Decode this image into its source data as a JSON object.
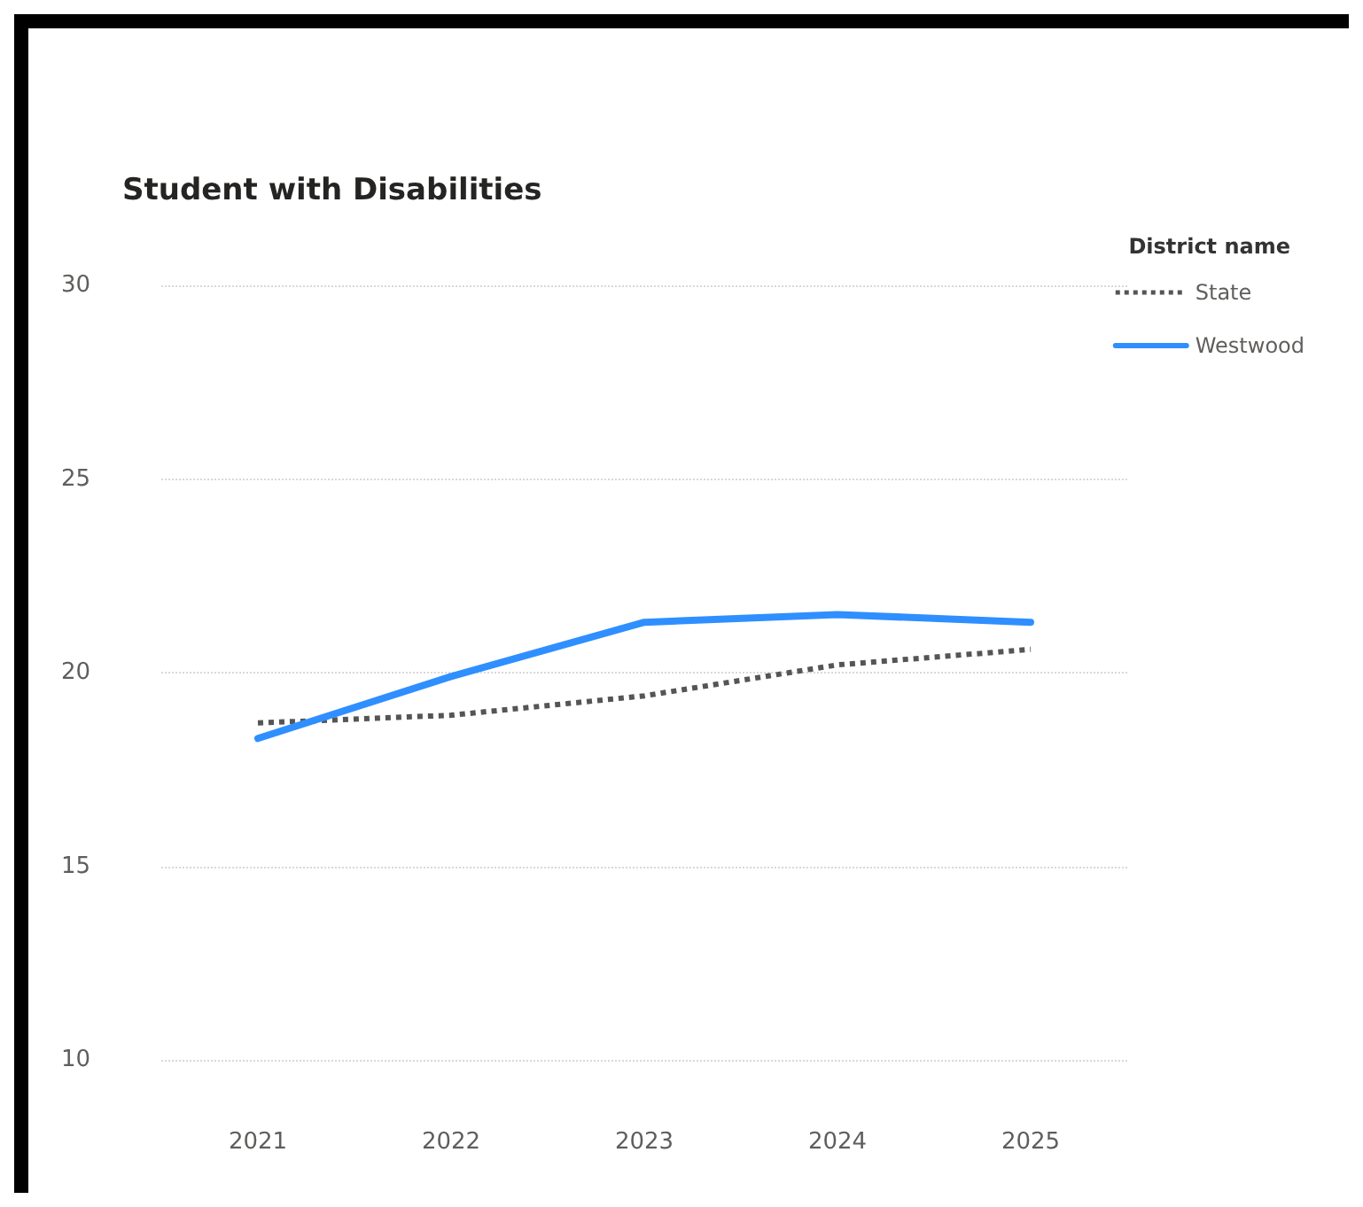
{
  "chart_data": {
    "type": "line",
    "title": "Student with Disabilities",
    "legend_title": "District name",
    "categories": [
      "2021",
      "2022",
      "2023",
      "2024",
      "2025"
    ],
    "series": [
      {
        "name": "State",
        "color": "#555555",
        "line_style": "dotted",
        "values": [
          18.7,
          18.9,
          19.4,
          20.2,
          20.6
        ]
      },
      {
        "name": "Westwood",
        "color": "#2f8fff",
        "line_style": "solid",
        "values": [
          18.3,
          19.9,
          21.3,
          21.5,
          21.3
        ]
      }
    ],
    "ylim": [
      10,
      30
    ],
    "yticks": [
      10,
      15,
      20,
      25,
      30
    ],
    "grid": "y",
    "legend": "top right",
    "marker": "none"
  }
}
